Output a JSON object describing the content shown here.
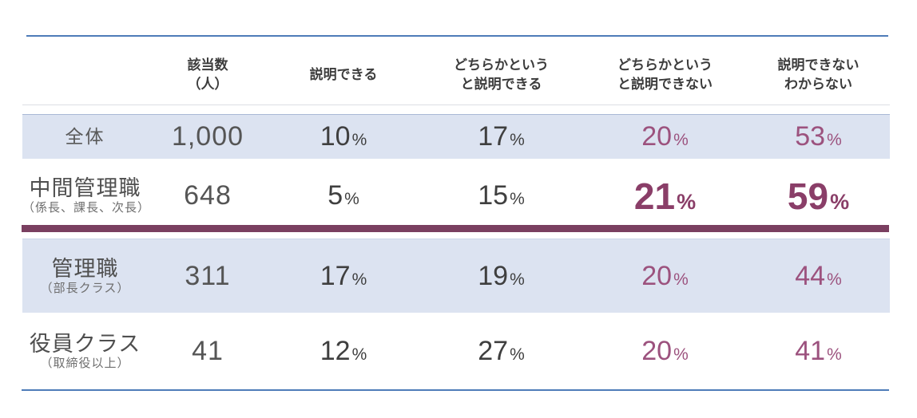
{
  "colors": {
    "accent_rule_blue": "#4e7cb8",
    "band_blue": "#dce3f1",
    "value_purple": "#9c527e",
    "emphasis_purple": "#8a3e68",
    "divider_purple": "#7a3f60",
    "text_dark": "#3f3f3f",
    "text_gray": "#555555"
  },
  "table": {
    "percent": "%",
    "headers": [
      {
        "line1": "該当数",
        "line2": "（人）"
      },
      {
        "line1": "説明できる",
        "line2": ""
      },
      {
        "line1": "どちらかという",
        "line2": "と説明できる"
      },
      {
        "line1": "どちらかという",
        "line2": "と説明できない"
      },
      {
        "line1": "説明できない",
        "line2": "わからない"
      }
    ],
    "rows": [
      {
        "label": "全体",
        "sublabel": "",
        "count": "1,000",
        "values": [
          "10",
          "17",
          "20",
          "53"
        ]
      },
      {
        "label": "中間管理職",
        "sublabel": "（係長、課長、次長）",
        "count": "648",
        "values": [
          "5",
          "15",
          "21",
          "59"
        ]
      },
      {
        "label": "管理職",
        "sublabel": "（部長クラス）",
        "count": "311",
        "values": [
          "17",
          "19",
          "20",
          "44"
        ]
      },
      {
        "label": "役員クラス",
        "sublabel": "（取締役以上）",
        "count": "41",
        "values": [
          "12",
          "27",
          "20",
          "41"
        ]
      }
    ]
  },
  "chart_data": {
    "type": "table",
    "columns": [
      "該当数（人）",
      "説明できる",
      "どちらかというと説明できる",
      "どちらかというと説明できない",
      "説明できない わからない"
    ],
    "rows": [
      {
        "label": "全体",
        "n": 1000,
        "can_explain_pct": 10,
        "somewhat_can_explain_pct": 17,
        "somewhat_cannot_explain_pct": 20,
        "cannot_explain_or_unknown_pct": 53,
        "emphasized": false
      },
      {
        "label": "中間管理職（係長、課長、次長）",
        "n": 648,
        "can_explain_pct": 5,
        "somewhat_can_explain_pct": 15,
        "somewhat_cannot_explain_pct": 21,
        "cannot_explain_or_unknown_pct": 59,
        "emphasized": true
      },
      {
        "label": "管理職（部長クラス）",
        "n": 311,
        "can_explain_pct": 17,
        "somewhat_can_explain_pct": 19,
        "somewhat_cannot_explain_pct": 20,
        "cannot_explain_or_unknown_pct": 44,
        "emphasized": false
      },
      {
        "label": "役員クラス（取締役以上）",
        "n": 41,
        "can_explain_pct": 12,
        "somewhat_can_explain_pct": 27,
        "somewhat_cannot_explain_pct": 20,
        "cannot_explain_or_unknown_pct": 41,
        "emphasized": false
      }
    ],
    "layout": {
      "banded_rows": true,
      "band_color": "#dce3f1",
      "top_bottom_rule_color": "#4e7cb8",
      "emphasis_divider_below_row": "中間管理職（係長、課長、次長）"
    }
  }
}
